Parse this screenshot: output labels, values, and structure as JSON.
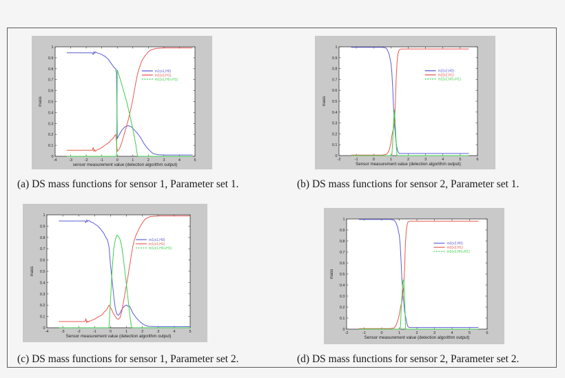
{
  "figure": {
    "panels": [
      {
        "id": "a",
        "caption": "(a) DS mass functions for sensor 1, Parameter set 1."
      },
      {
        "id": "b",
        "caption": "(b) DS mass functions for sensor 2, Parameter set 1."
      },
      {
        "id": "c",
        "caption": "(c) DS mass functions for sensor 1, Parameter set 2."
      },
      {
        "id": "d",
        "caption": "(d) DS mass functions for sensor 2, Parameter set 2."
      }
    ]
  },
  "colors": {
    "blue": "#5a5ad6",
    "red": "#e8584f",
    "green": "#3ccf4a",
    "panel_bg": "#c9c9c9",
    "plot_bg": "#ffffff",
    "frame": "#5a5a5a"
  },
  "chart_data": [
    {
      "id": "a",
      "type": "line",
      "title": "",
      "xlabel": "sensor measurement value (detection algorithm output)",
      "ylabel": "mass",
      "xlim": [
        -4,
        5
      ],
      "ylim": [
        0,
        1
      ],
      "xticks": [
        -4,
        -3,
        -2,
        -1,
        0,
        1,
        2,
        3,
        4,
        5
      ],
      "yticks": [
        0,
        0.1,
        0.2,
        0.3,
        0.4,
        0.5,
        0.6,
        0.7,
        0.8,
        0.9,
        1
      ],
      "ytick_labels": [
        "0",
        "0.1",
        "0.2",
        "0.3",
        "0.4",
        "0.5",
        "0.6",
        "0.7",
        "0.8",
        "0.9",
        "1"
      ],
      "legend_position": "upper right",
      "series": [
        {
          "name": "m1(x1,H0)",
          "color": "blue",
          "style": "solid",
          "x": [
            -3.25,
            -1.6,
            -1.55,
            -1.5,
            -1.45,
            -1.4,
            -1.3,
            -1.2,
            -1.1,
            -1.0,
            -0.9,
            -0.8,
            -0.7,
            -0.6,
            -0.5,
            -0.4,
            -0.3,
            -0.2,
            -0.1,
            -0.05,
            0.0,
            0.1,
            0.3,
            0.5,
            0.7,
            0.9,
            1.1,
            1.3,
            1.5,
            1.7,
            1.9,
            2.1,
            2.3,
            2.6,
            3.0,
            4.0,
            4.85
          ],
          "y": [
            0.945,
            0.945,
            0.93,
            0.955,
            0.94,
            0.955,
            0.945,
            0.94,
            0.935,
            0.93,
            0.92,
            0.915,
            0.9,
            0.89,
            0.87,
            0.85,
            0.83,
            0.81,
            0.8,
            0.76,
            0.16,
            0.19,
            0.24,
            0.27,
            0.28,
            0.27,
            0.24,
            0.21,
            0.17,
            0.12,
            0.08,
            0.05,
            0.025,
            0.015,
            0.012,
            0.012,
            0.012
          ]
        },
        {
          "name": "m1(x1,H1)",
          "color": "red",
          "style": "solid",
          "x": [
            -3.25,
            -1.6,
            -1.55,
            -1.5,
            -1.45,
            -1.4,
            -1.3,
            -1.2,
            -1.1,
            -1.0,
            -0.9,
            -0.8,
            -0.7,
            -0.6,
            -0.5,
            -0.4,
            -0.3,
            -0.2,
            -0.1,
            0.0,
            0.1,
            0.2,
            0.3,
            0.4,
            0.5,
            0.6,
            0.7,
            0.8,
            0.9,
            1.0,
            1.1,
            1.2,
            1.3,
            1.4,
            1.5,
            1.6,
            1.8,
            2.0,
            2.2,
            2.5,
            3.0,
            4.0,
            4.85
          ],
          "y": [
            0.055,
            0.055,
            0.08,
            0.045,
            0.06,
            0.045,
            0.06,
            0.065,
            0.07,
            0.08,
            0.09,
            0.1,
            0.11,
            0.12,
            0.13,
            0.15,
            0.16,
            0.18,
            0.2,
            0.045,
            0.06,
            0.09,
            0.13,
            0.18,
            0.23,
            0.28,
            0.33,
            0.39,
            0.45,
            0.52,
            0.6,
            0.68,
            0.75,
            0.8,
            0.84,
            0.88,
            0.92,
            0.955,
            0.975,
            0.985,
            0.99,
            0.99,
            0.99
          ]
        },
        {
          "name": "m1(x1,H0∪H1)",
          "color": "green",
          "style": "solid",
          "x": [
            -3.25,
            -0.1,
            -0.05,
            0.0,
            0.2,
            0.4,
            0.6,
            0.8,
            1.0,
            1.2,
            1.3,
            1.35,
            4.85
          ],
          "y": [
            0.0,
            0.0,
            0.0,
            0.79,
            0.7,
            0.6,
            0.5,
            0.38,
            0.25,
            0.1,
            0.0,
            0.0,
            0.0
          ]
        }
      ]
    },
    {
      "id": "b",
      "type": "line",
      "title": "",
      "xlabel": "Sensor measurement value (detection algorithm output)",
      "ylabel": "mass",
      "xlim": [
        -2,
        6
      ],
      "ylim": [
        0,
        1
      ],
      "xticks": [
        -2,
        -1,
        0,
        1,
        2,
        3,
        4,
        5,
        6
      ],
      "yticks": [
        0,
        0.1,
        0.2,
        0.3,
        0.4,
        0.5,
        0.6,
        0.7,
        0.8,
        0.9,
        1
      ],
      "ytick_labels": [
        "0",
        "0.1",
        "0.2",
        "0.3",
        "0.4",
        "0.5",
        "0.6",
        "0.7",
        "0.8",
        "0.9",
        "1"
      ],
      "legend_position": "upper right",
      "series": [
        {
          "name": "m2(x2,H0)",
          "color": "blue",
          "style": "solid",
          "x": [
            -1.3,
            0.5,
            0.7,
            0.8,
            0.9,
            1.0,
            1.05,
            1.1,
            1.15,
            1.2,
            1.25,
            1.3,
            1.35,
            1.4,
            1.45,
            1.5,
            1.6,
            2.0,
            5.5
          ],
          "y": [
            0.995,
            0.995,
            0.99,
            0.97,
            0.93,
            0.85,
            0.77,
            0.63,
            0.45,
            0.3,
            0.2,
            0.12,
            0.07,
            0.04,
            0.025,
            0.02,
            0.02,
            0.02,
            0.02
          ]
        },
        {
          "name": "m2(x2,H1)",
          "color": "red",
          "style": "solid",
          "x": [
            -1.3,
            0.5,
            0.7,
            0.8,
            0.9,
            1.0,
            1.05,
            1.1,
            1.15,
            1.2,
            1.25,
            1.3,
            1.35,
            1.4,
            1.45,
            1.5,
            1.6,
            2.0,
            5.5
          ],
          "y": [
            0.005,
            0.005,
            0.01,
            0.02,
            0.05,
            0.12,
            0.18,
            0.22,
            0.25,
            0.3,
            0.45,
            0.7,
            0.85,
            0.93,
            0.96,
            0.975,
            0.98,
            0.98,
            0.98
          ]
        },
        {
          "name": "m2(x2,H0∪H1)",
          "color": "green",
          "style": "solid",
          "x": [
            -1.3,
            1.05,
            1.1,
            1.15,
            1.2,
            1.25,
            1.3,
            1.35,
            5.5
          ],
          "y": [
            0.0,
            0.0,
            0.12,
            0.3,
            0.42,
            0.3,
            0.12,
            0.0,
            0.0
          ]
        }
      ]
    },
    {
      "id": "c",
      "type": "line",
      "title": "",
      "xlabel": "Sensor measurement value (detection algorithm output)",
      "ylabel": "mass",
      "xlim": [
        -4,
        5
      ],
      "ylim": [
        0,
        1
      ],
      "xticks": [
        -4,
        -3,
        -2,
        -1,
        0,
        1,
        2,
        3,
        4,
        5
      ],
      "yticks": [
        0,
        0.1,
        0.2,
        0.3,
        0.4,
        0.5,
        0.6,
        0.7,
        0.8,
        0.9,
        1
      ],
      "ytick_labels": [
        "0",
        "0.1",
        "0.2",
        "0.3",
        "0.4",
        "0.5",
        "0.6",
        "0.7",
        "0.8",
        "0.9",
        "1"
      ],
      "legend_position": "upper right",
      "series": [
        {
          "name": "m1(x1,H0)",
          "color": "blue",
          "style": "solid",
          "x": [
            -3.25,
            -1.6,
            -1.55,
            -1.5,
            -1.45,
            -1.4,
            -1.3,
            -1.2,
            -1.1,
            -1.0,
            -0.9,
            -0.8,
            -0.7,
            -0.6,
            -0.5,
            -0.4,
            -0.3,
            -0.2,
            -0.1,
            0.0,
            0.1,
            0.2,
            0.3,
            0.4,
            0.5,
            0.6,
            0.7,
            0.8,
            0.9,
            1.0,
            1.1,
            1.2,
            1.3,
            1.4,
            1.6,
            1.8,
            2.0,
            2.2,
            2.4,
            3.0,
            4.0,
            5.0
          ],
          "y": [
            0.945,
            0.945,
            0.93,
            0.955,
            0.94,
            0.95,
            0.945,
            0.935,
            0.93,
            0.92,
            0.91,
            0.9,
            0.885,
            0.87,
            0.85,
            0.83,
            0.8,
            0.78,
            0.72,
            0.55,
            0.42,
            0.28,
            0.17,
            0.12,
            0.11,
            0.13,
            0.16,
            0.18,
            0.195,
            0.2,
            0.19,
            0.19,
            0.16,
            0.13,
            0.09,
            0.06,
            0.035,
            0.02,
            0.012,
            0.01,
            0.01,
            0.01
          ]
        },
        {
          "name": "m1(x1,H1)",
          "color": "red",
          "style": "solid",
          "x": [
            -3.25,
            -1.6,
            -1.55,
            -1.5,
            -1.45,
            -1.4,
            -1.3,
            -1.2,
            -1.1,
            -1.0,
            -0.9,
            -0.8,
            -0.7,
            -0.6,
            -0.5,
            -0.4,
            -0.3,
            -0.2,
            -0.1,
            0.0,
            0.1,
            0.2,
            0.3,
            0.4,
            0.5,
            0.6,
            0.7,
            0.8,
            0.9,
            1.0,
            1.1,
            1.2,
            1.3,
            1.4,
            1.5,
            1.6,
            1.8,
            2.0,
            2.2,
            2.5,
            3.0,
            4.0,
            5.0
          ],
          "y": [
            0.055,
            0.055,
            0.08,
            0.045,
            0.06,
            0.05,
            0.06,
            0.065,
            0.07,
            0.075,
            0.085,
            0.095,
            0.1,
            0.11,
            0.12,
            0.14,
            0.15,
            0.17,
            0.2,
            0.18,
            0.15,
            0.12,
            0.1,
            0.08,
            0.075,
            0.09,
            0.14,
            0.22,
            0.3,
            0.38,
            0.46,
            0.55,
            0.64,
            0.72,
            0.78,
            0.82,
            0.88,
            0.93,
            0.965,
            0.985,
            0.99,
            0.99,
            0.99
          ]
        },
        {
          "name": "m1(x1,H0∪H1)",
          "color": "green",
          "style": "solid",
          "x": [
            -3.25,
            -0.15,
            -0.1,
            0.0,
            0.1,
            0.2,
            0.3,
            0.4,
            0.5,
            0.6,
            0.7,
            0.8,
            0.9,
            1.0,
            1.1,
            1.2,
            1.3,
            1.35,
            5.0
          ],
          "y": [
            0.0,
            0.0,
            0.0,
            0.25,
            0.52,
            0.7,
            0.78,
            0.82,
            0.81,
            0.78,
            0.72,
            0.62,
            0.5,
            0.38,
            0.25,
            0.12,
            0.02,
            0.0,
            0.0
          ]
        }
      ]
    },
    {
      "id": "d",
      "type": "line",
      "title": "",
      "xlabel": "Sensor measurement value (detection algorithm output)",
      "ylabel": "mass",
      "xlim": [
        -2,
        6
      ],
      "ylim": [
        0,
        1
      ],
      "xticks": [
        -2,
        -1,
        0,
        1,
        2,
        3,
        4,
        5,
        6
      ],
      "yticks": [
        0,
        0.1,
        0.2,
        0.3,
        0.4,
        0.5,
        0.6,
        0.7,
        0.8,
        0.9,
        1
      ],
      "ytick_labels": [
        "0",
        "0.1",
        "0.2",
        "0.3",
        "0.4",
        "0.5",
        "0.6",
        "0.7",
        "0.8",
        "0.9",
        "1"
      ],
      "legend_position": "upper right",
      "series": [
        {
          "name": "m2(x2,H0)",
          "color": "blue",
          "style": "solid",
          "x": [
            -1.3,
            0.5,
            0.7,
            0.8,
            0.9,
            1.0,
            1.05,
            1.1,
            1.15,
            1.2,
            1.25,
            1.3,
            1.35,
            1.4,
            1.45,
            1.5,
            1.6,
            2.0,
            5.5
          ],
          "y": [
            0.995,
            0.995,
            0.99,
            0.97,
            0.93,
            0.85,
            0.77,
            0.62,
            0.45,
            0.33,
            0.25,
            0.16,
            0.12,
            0.08,
            0.04,
            0.02,
            0.015,
            0.015,
            0.015
          ]
        },
        {
          "name": "m2(x2,H1)",
          "color": "red",
          "style": "solid",
          "x": [
            -1.3,
            0.5,
            0.7,
            0.8,
            0.9,
            1.0,
            1.05,
            1.1,
            1.15,
            1.2,
            1.25,
            1.3,
            1.35,
            1.4,
            1.45,
            1.5,
            1.6,
            2.0,
            5.5
          ],
          "y": [
            0.005,
            0.005,
            0.01,
            0.03,
            0.07,
            0.13,
            0.18,
            0.22,
            0.25,
            0.3,
            0.38,
            0.55,
            0.78,
            0.9,
            0.95,
            0.975,
            0.98,
            0.98,
            0.98
          ]
        },
        {
          "name": "m2(x2,H0∪H1)",
          "color": "green",
          "style": "solid",
          "x": [
            -1.3,
            1.05,
            1.06,
            1.1,
            1.15,
            1.2,
            1.25,
            1.3,
            1.35,
            1.36,
            5.5
          ],
          "y": [
            0.0,
            0.0,
            0.0,
            0.15,
            0.3,
            0.43,
            0.45,
            0.3,
            0.05,
            0.0,
            0.0
          ]
        }
      ]
    }
  ],
  "legends": {
    "a": [
      "m1(x1,H0)",
      "m1(x1,H1)",
      "m1(x1,H0∪H1)"
    ],
    "b": [
      "m2(x2,H0)",
      "m2(x2,H1)",
      "m2(x2,H0∪H1)"
    ],
    "c": [
      "m1(x1,H0)",
      "m1(x1,H1)",
      "m1(x1,H0∪H1)"
    ],
    "d": [
      "m2(x2,H0)",
      "m2(x2,H1)",
      "m2(x2,H0∪H1)"
    ]
  }
}
